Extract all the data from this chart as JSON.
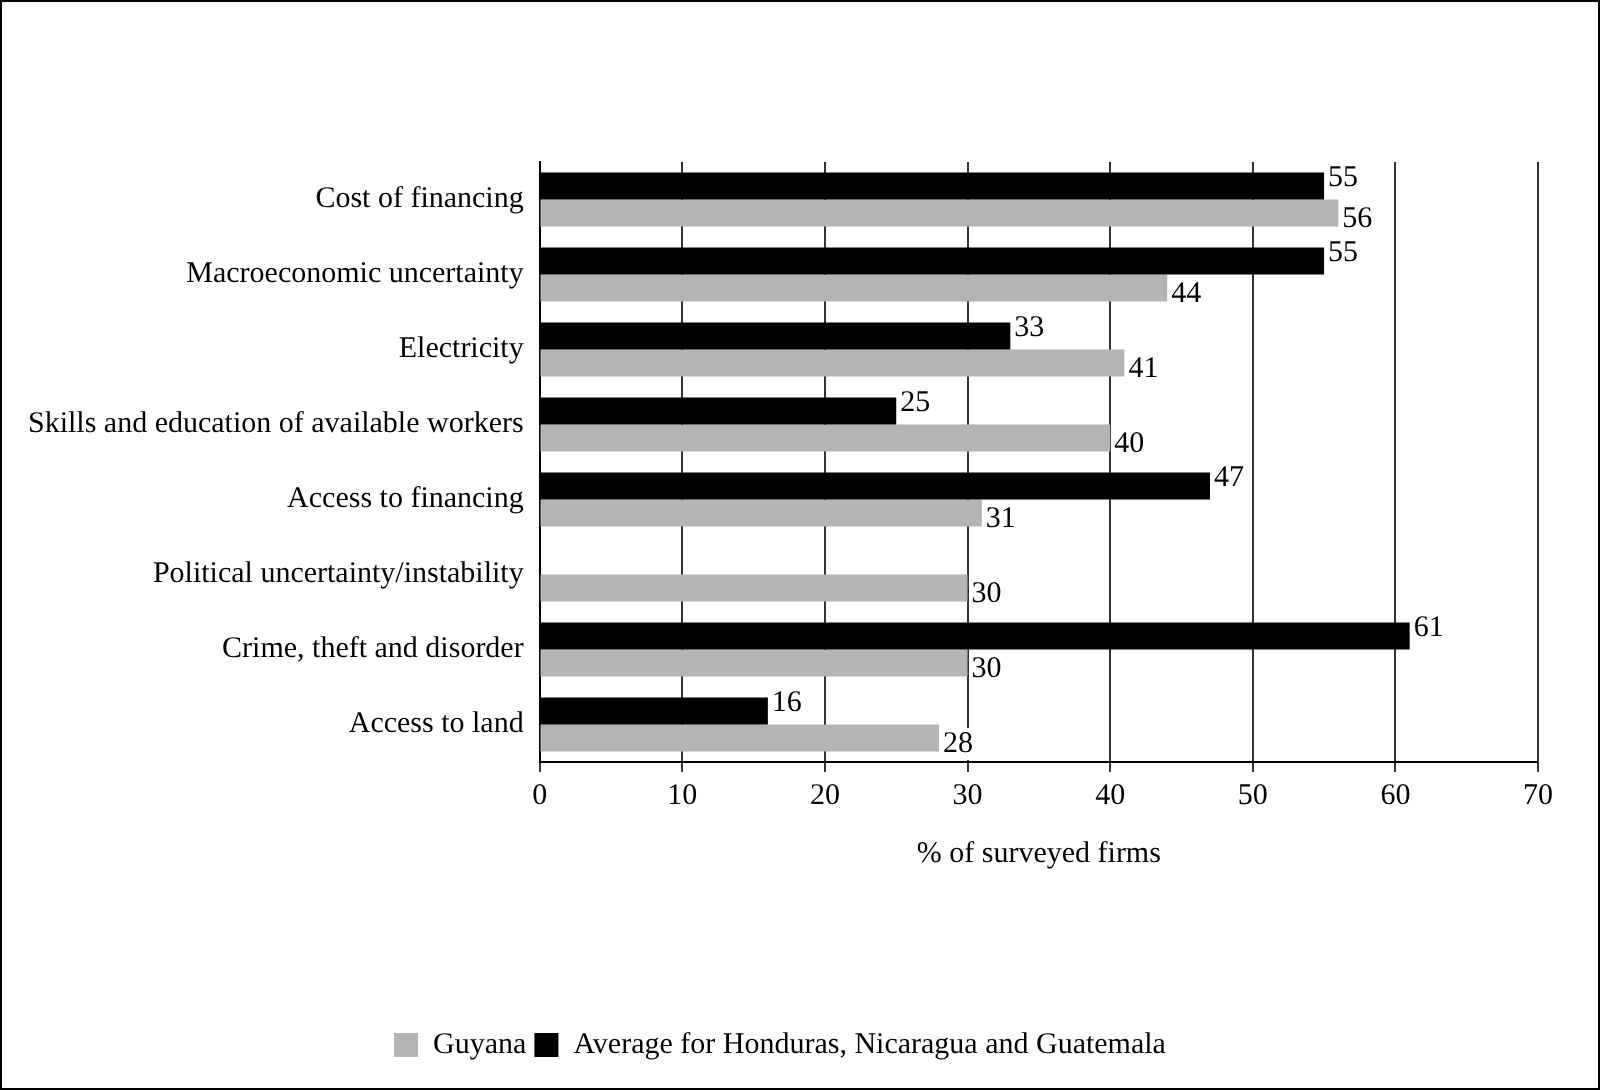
{
  "chart_data": {
    "type": "bar",
    "orientation": "horizontal",
    "xlabel": "% of surveyed firms",
    "categories": [
      "Cost of financing",
      "Macroeconomic uncertainty",
      "Electricity",
      "Skills and education of available workers",
      "Access to financing",
      "Political uncertainty/instability",
      "Crime, theft and disorder",
      "Access to land"
    ],
    "series": [
      {
        "name": "Guyana",
        "color": "#b4b4b4",
        "values": [
          56,
          44,
          41,
          40,
          31,
          30,
          30,
          28
        ]
      },
      {
        "name": "Average for Honduras, Nicaragua and Guatemala",
        "color": "#000000",
        "values": [
          55,
          55,
          33,
          25,
          47,
          null,
          61,
          16
        ]
      }
    ],
    "xlim": [
      0,
      70
    ],
    "xticks": [
      0,
      10,
      20,
      30,
      40,
      50,
      60,
      70
    ],
    "grid": "x",
    "legend": "bottom",
    "data_labels": true
  }
}
